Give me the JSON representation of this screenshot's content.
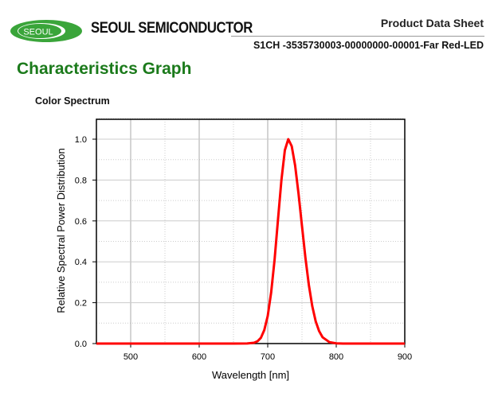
{
  "header": {
    "logo_text": "SEOUL",
    "brand": "SEOUL SEMICONDUCTOR",
    "doc_type": "Product Data Sheet",
    "part_number": "S1CH -3535730003-00000000-00001-Far Red-LED"
  },
  "page_title": "Characteristics Graph",
  "section_title": "Color Spectrum",
  "colors": {
    "title_green": "#1b7a1b",
    "logo_green": "#3aa53a",
    "curve": "#ff0000"
  },
  "chart_data": {
    "type": "line",
    "title": "Color Spectrum",
    "xlabel": "Wavelength [nm]",
    "ylabel": "Relative Spectral Power Distribution",
    "xlim": [
      450,
      900
    ],
    "ylim": [
      0,
      1.1
    ],
    "xticks": [
      "500",
      "600",
      "700",
      "800",
      "900"
    ],
    "xtick_values": [
      500,
      600,
      700,
      800,
      900
    ],
    "yticks": [
      "0.0",
      "0.2",
      "0.4",
      "0.6",
      "0.8",
      "1.0"
    ],
    "ytick_values": [
      0,
      0.2,
      0.4,
      0.6,
      0.8,
      1.0
    ],
    "grid": true,
    "series": [
      {
        "name": "Far Red",
        "color": "#ff0000",
        "x": [
          450,
          600,
          650,
          670,
          680,
          685,
          690,
          695,
          700,
          705,
          710,
          715,
          720,
          725,
          730,
          735,
          740,
          745,
          750,
          755,
          760,
          765,
          770,
          775,
          780,
          790,
          800,
          810,
          850,
          900
        ],
        "y": [
          0,
          0,
          0,
          0.0003,
          0.004,
          0.011,
          0.028,
          0.066,
          0.135,
          0.25,
          0.41,
          0.607,
          0.8,
          0.946,
          1.0,
          0.966,
          0.871,
          0.732,
          0.575,
          0.42,
          0.287,
          0.183,
          0.109,
          0.061,
          0.031,
          0.007,
          0.001,
          0,
          0,
          0
        ]
      }
    ]
  }
}
